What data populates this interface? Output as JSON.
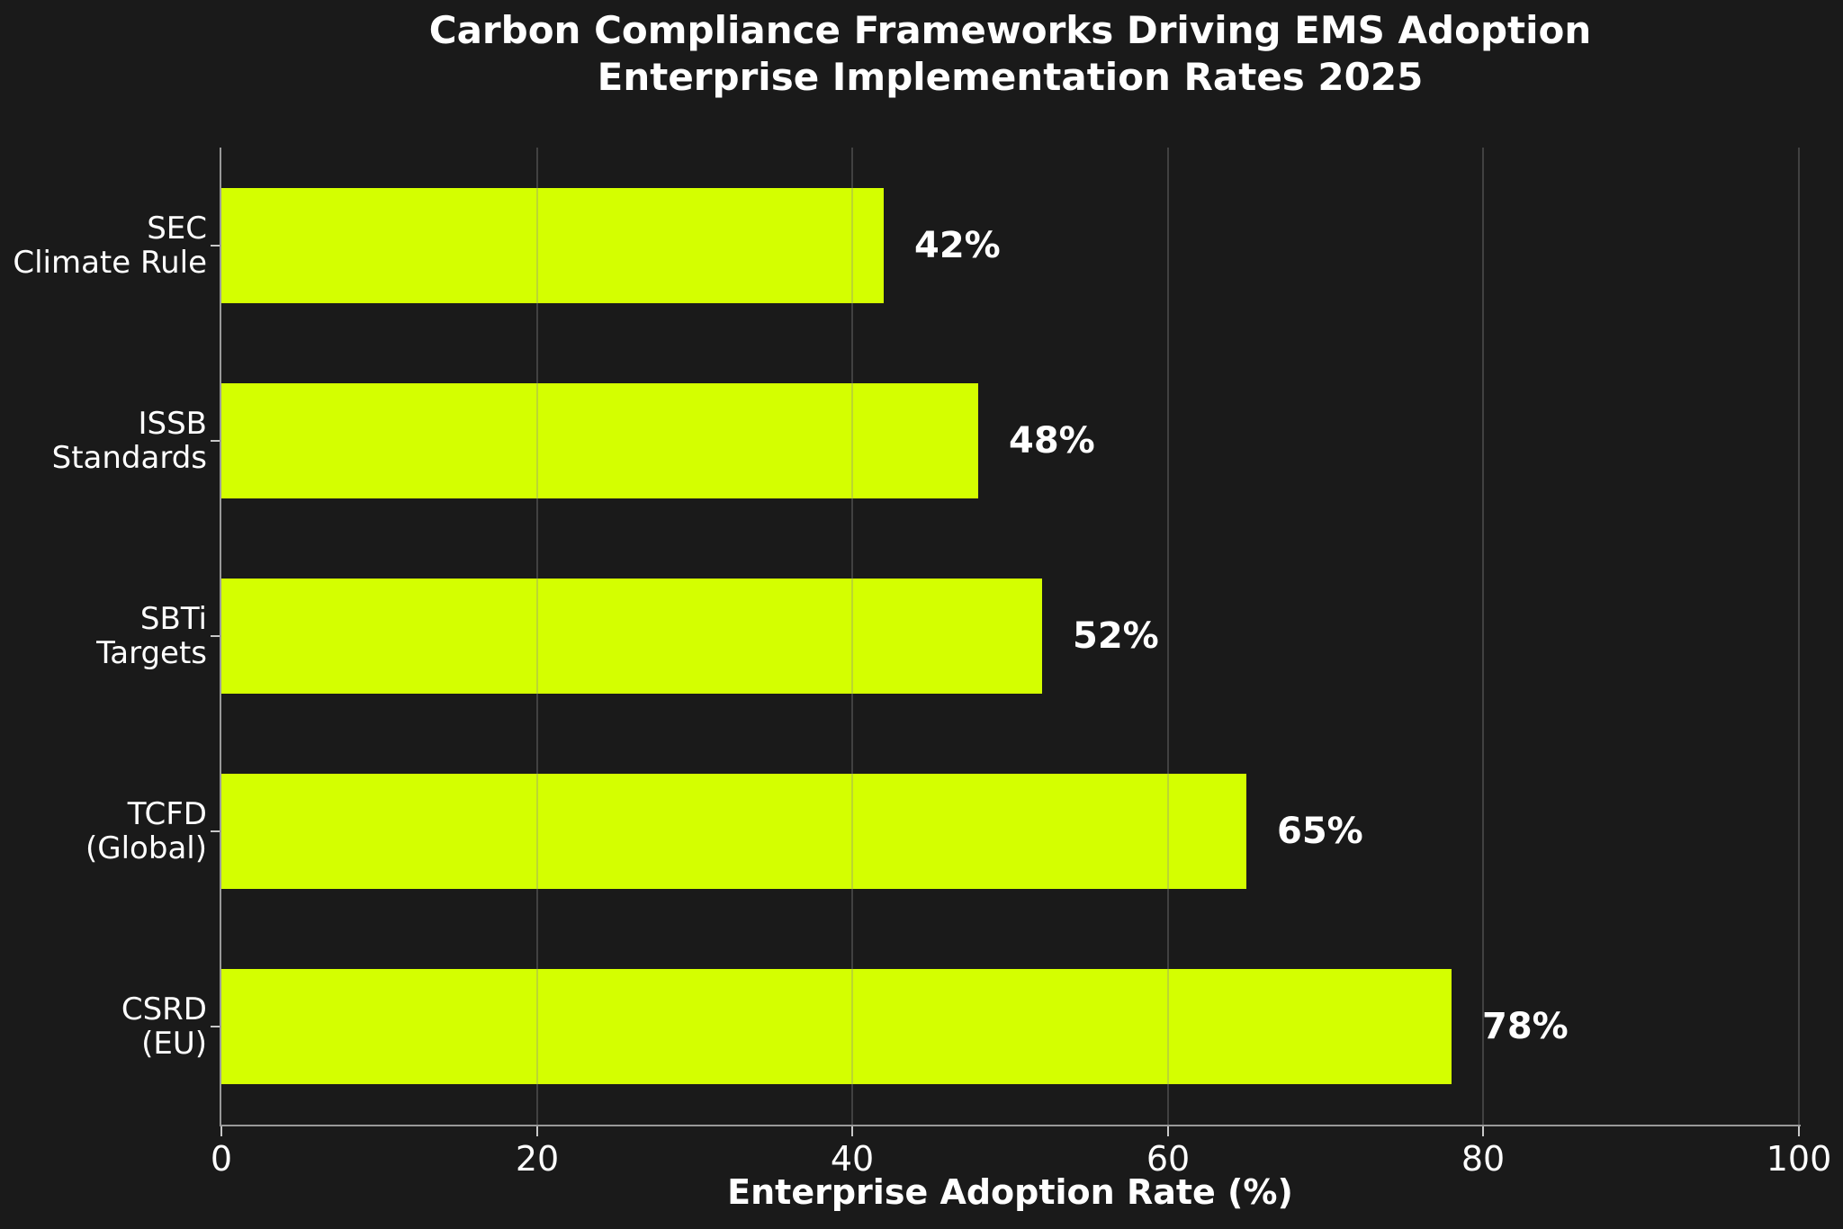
{
  "chart_data": {
    "type": "bar",
    "orientation": "horizontal",
    "title_line1": "Carbon Compliance Frameworks Driving EMS Adoption",
    "title_line2": "Enterprise Implementation Rates 2025",
    "xlabel": "Enterprise Adoption Rate (%)",
    "xlim": [
      0,
      100
    ],
    "xticks": [
      0,
      20,
      40,
      60,
      80,
      100
    ],
    "grid": "vertical gridlines at xticks, drawn above bars",
    "legend_position": "none",
    "rows": [
      {
        "category_line1": "SEC",
        "category_line2": "Climate Rule",
        "value": 42,
        "value_label": "42%"
      },
      {
        "category_line1": "ISSB",
        "category_line2": "Standards",
        "value": 48,
        "value_label": "48%"
      },
      {
        "category_line1": "SBTi",
        "category_line2": "Targets",
        "value": 52,
        "value_label": "52%"
      },
      {
        "category_line1": "TCFD",
        "category_line2": "(Global)",
        "value": 65,
        "value_label": "65%"
      },
      {
        "category_line1": "CSRD",
        "category_line2": "(EU)",
        "value": 78,
        "value_label": "78%"
      }
    ],
    "colors": {
      "background": "#1a1a1a",
      "bar": "#d4ff00",
      "text": "#ffffff",
      "spine": "#999999",
      "tick_mark": "#c8c8c8",
      "gridline": "rgba(140,140,140,0.35)"
    }
  }
}
